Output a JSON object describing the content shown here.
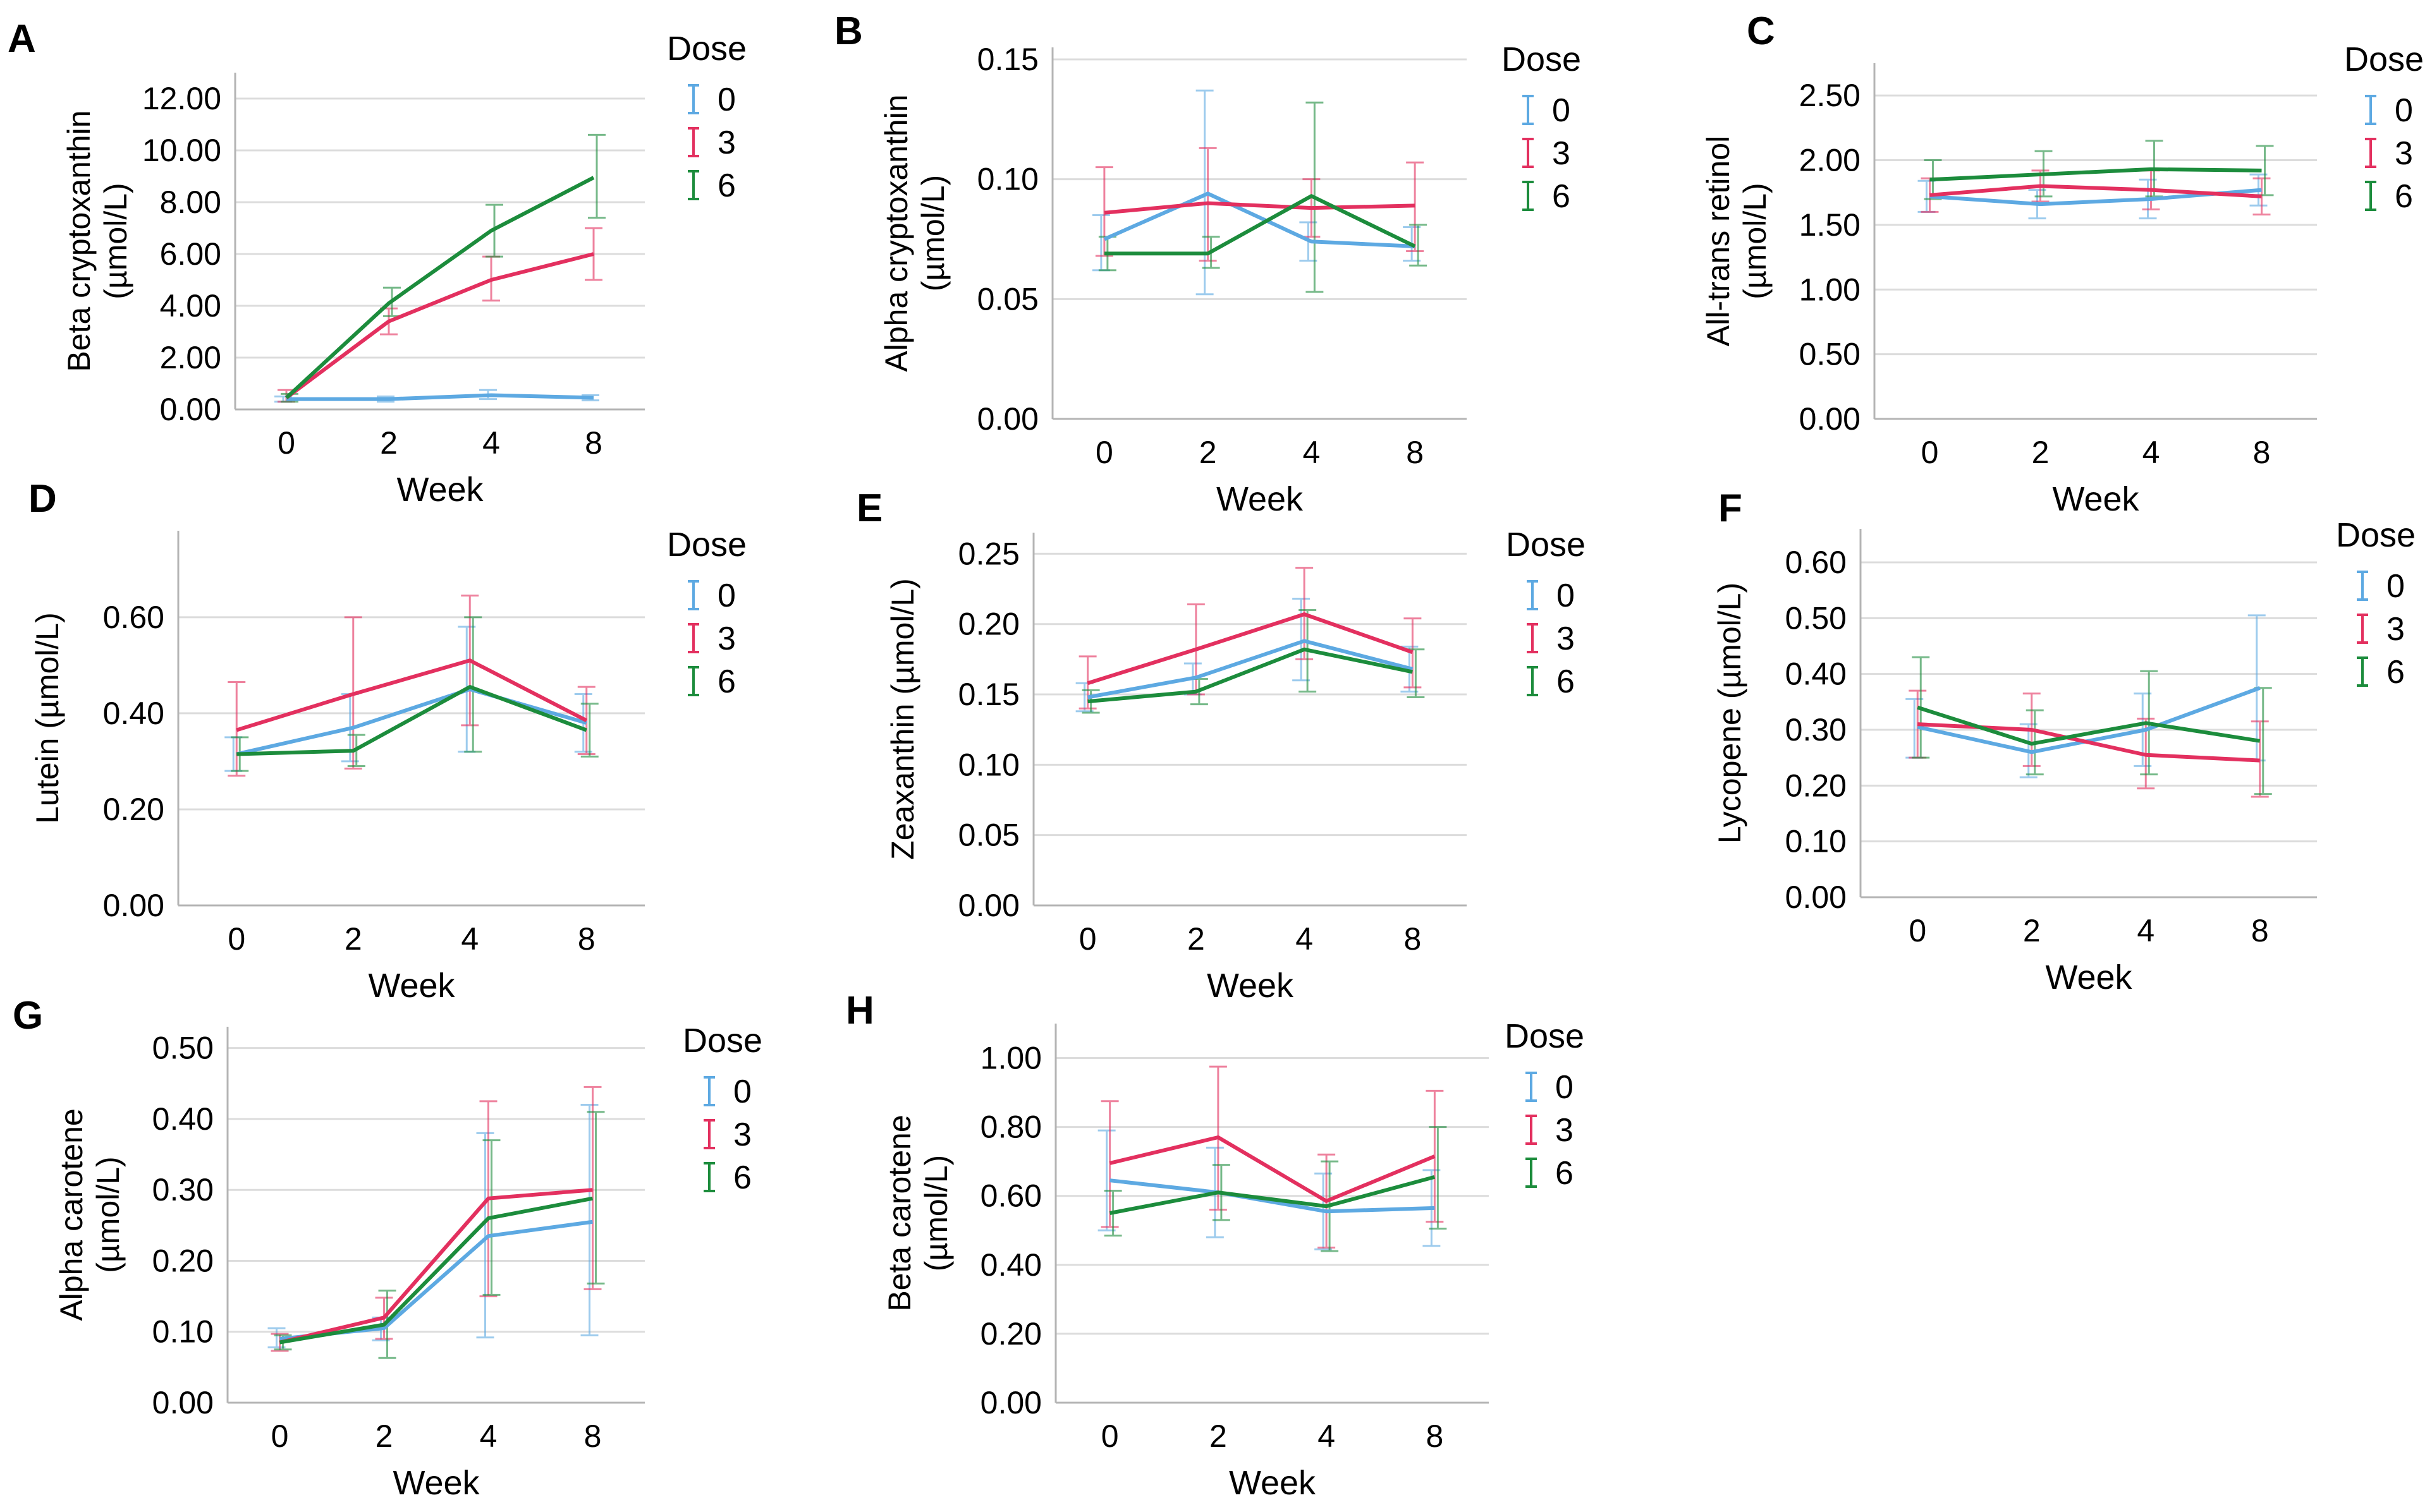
{
  "figure": {
    "series_names": [
      "0",
      "3",
      "6"
    ]
  },
  "colors": {
    "dose0": "#5DA9E2",
    "dose3": "#E3305F",
    "dose6": "#1C8C3C",
    "grid": "#DCDCDC",
    "axis": "#B4B4B4",
    "text": "#000000"
  },
  "chart_data": [
    {
      "id": "A",
      "panel_label": "A",
      "type": "line",
      "title": "",
      "xlabel": "Week",
      "ylabel": [
        "Beta cryptoxanthin",
        "(µmol/L)"
      ],
      "categories": [
        "0",
        "2",
        "4",
        "8"
      ],
      "ylim": [
        0,
        13
      ],
      "yticks": [
        "0.00",
        "2.00",
        "4.00",
        "6.00",
        "8.00",
        "10.00",
        "12.00"
      ],
      "ytick_values": [
        0,
        2,
        4,
        6,
        8,
        10,
        12
      ],
      "grid": true,
      "legend_title": "Dose",
      "legend_position": "right",
      "series": [
        {
          "name": "0",
          "values": [
            0.4,
            0.4,
            0.55,
            0.45
          ],
          "err_low": [
            0.3,
            0.3,
            0.4,
            0.35
          ],
          "err_high": [
            0.5,
            0.5,
            0.75,
            0.55
          ]
        },
        {
          "name": "3",
          "values": [
            0.45,
            3.4,
            5.0,
            6.0
          ],
          "err_low": [
            0.3,
            2.9,
            4.2,
            5.0
          ],
          "err_high": [
            0.75,
            3.9,
            5.9,
            7.0
          ]
        },
        {
          "name": "6",
          "values": [
            0.45,
            4.1,
            6.9,
            8.95
          ],
          "err_low": [
            0.3,
            3.6,
            5.9,
            7.4
          ],
          "err_high": [
            0.6,
            4.7,
            7.9,
            10.6
          ]
        }
      ]
    },
    {
      "id": "B",
      "panel_label": "B",
      "type": "line",
      "title": "",
      "xlabel": "Week",
      "ylabel": [
        "Alpha cryptoxanthin",
        "(µmol/L)"
      ],
      "categories": [
        "0",
        "2",
        "4",
        "8"
      ],
      "ylim": [
        0,
        0.155
      ],
      "yticks": [
        "0.00",
        "0.05",
        "0.10",
        "0.15"
      ],
      "ytick_values": [
        0,
        0.05,
        0.1,
        0.15
      ],
      "grid": true,
      "legend_title": "Dose",
      "legend_position": "right",
      "series": [
        {
          "name": "0",
          "values": [
            0.075,
            0.094,
            0.074,
            0.072
          ],
          "err_low": [
            0.062,
            0.052,
            0.066,
            0.066
          ],
          "err_high": [
            0.085,
            0.137,
            0.082,
            0.08
          ]
        },
        {
          "name": "3",
          "values": [
            0.086,
            0.09,
            0.088,
            0.089
          ],
          "err_low": [
            0.068,
            0.066,
            0.076,
            0.07
          ],
          "err_high": [
            0.105,
            0.113,
            0.1,
            0.107
          ]
        },
        {
          "name": "6",
          "values": [
            0.069,
            0.069,
            0.093,
            0.072
          ],
          "err_low": [
            0.062,
            0.063,
            0.053,
            0.064
          ],
          "err_high": [
            0.076,
            0.076,
            0.132,
            0.081
          ]
        }
      ]
    },
    {
      "id": "C",
      "panel_label": "C",
      "type": "line",
      "title": "",
      "xlabel": "Week",
      "ylabel": [
        "All-trans retinol",
        "(µmol/L)"
      ],
      "categories": [
        "0",
        "2",
        "4",
        "8"
      ],
      "ylim": [
        0,
        2.75
      ],
      "yticks": [
        "0.00",
        "0.50",
        "1.00",
        "1.50",
        "2.00",
        "2.50"
      ],
      "ytick_values": [
        0,
        0.5,
        1.0,
        1.5,
        2.0,
        2.5
      ],
      "grid": true,
      "legend_title": "Dose",
      "legend_position": "right",
      "series": [
        {
          "name": "0",
          "values": [
            1.72,
            1.66,
            1.7,
            1.77
          ],
          "err_low": [
            1.6,
            1.55,
            1.55,
            1.65
          ],
          "err_high": [
            1.84,
            1.77,
            1.85,
            1.89
          ]
        },
        {
          "name": "3",
          "values": [
            1.73,
            1.8,
            1.77,
            1.72
          ],
          "err_low": [
            1.6,
            1.68,
            1.62,
            1.58
          ],
          "err_high": [
            1.86,
            1.92,
            1.92,
            1.86
          ]
        },
        {
          "name": "6",
          "values": [
            1.85,
            1.89,
            1.93,
            1.92
          ],
          "err_low": [
            1.7,
            1.72,
            1.72,
            1.73
          ],
          "err_high": [
            2.0,
            2.07,
            2.15,
            2.11
          ]
        }
      ]
    },
    {
      "id": "D",
      "panel_label": "D",
      "type": "line",
      "title": "",
      "xlabel": "Week",
      "ylabel": [
        "Lutein (µmol/L)"
      ],
      "categories": [
        "0",
        "2",
        "4",
        "8"
      ],
      "ylim": [
        0,
        0.78
      ],
      "yticks": [
        "0.00",
        "0.20",
        "0.40",
        "0.60"
      ],
      "ytick_values": [
        0,
        0.2,
        0.4,
        0.6
      ],
      "grid": true,
      "legend_title": "Dose",
      "legend_position": "right",
      "series": [
        {
          "name": "0",
          "values": [
            0.315,
            0.37,
            0.45,
            0.38
          ],
          "err_low": [
            0.28,
            0.3,
            0.32,
            0.32
          ],
          "err_high": [
            0.35,
            0.44,
            0.58,
            0.44
          ]
        },
        {
          "name": "3",
          "values": [
            0.365,
            0.44,
            0.51,
            0.385
          ],
          "err_low": [
            0.27,
            0.285,
            0.375,
            0.315
          ],
          "err_high": [
            0.465,
            0.6,
            0.645,
            0.455
          ]
        },
        {
          "name": "6",
          "values": [
            0.315,
            0.322,
            0.455,
            0.365
          ],
          "err_low": [
            0.28,
            0.29,
            0.32,
            0.31
          ],
          "err_high": [
            0.35,
            0.355,
            0.6,
            0.42
          ]
        }
      ]
    },
    {
      "id": "E",
      "panel_label": "E",
      "type": "line",
      "title": "",
      "xlabel": "Week",
      "ylabel": [
        "Zeaxanthin (µmol/L)"
      ],
      "categories": [
        "0",
        "2",
        "4",
        "8"
      ],
      "ylim": [
        0,
        0.265
      ],
      "yticks": [
        "0.00",
        "0.05",
        "0.10",
        "0.15",
        "0.20",
        "0.25"
      ],
      "ytick_values": [
        0,
        0.05,
        0.1,
        0.15,
        0.2,
        0.25
      ],
      "grid": true,
      "legend_title": "Dose",
      "legend_position": "right",
      "series": [
        {
          "name": "0",
          "values": [
            0.148,
            0.162,
            0.188,
            0.168
          ],
          "err_low": [
            0.138,
            0.15,
            0.16,
            0.152
          ],
          "err_high": [
            0.158,
            0.172,
            0.218,
            0.184
          ]
        },
        {
          "name": "3",
          "values": [
            0.158,
            0.182,
            0.207,
            0.18
          ],
          "err_low": [
            0.14,
            0.15,
            0.175,
            0.155
          ],
          "err_high": [
            0.177,
            0.214,
            0.24,
            0.204
          ]
        },
        {
          "name": "6",
          "values": [
            0.145,
            0.152,
            0.182,
            0.166
          ],
          "err_low": [
            0.137,
            0.143,
            0.152,
            0.148
          ],
          "err_high": [
            0.153,
            0.161,
            0.21,
            0.182
          ]
        }
      ]
    },
    {
      "id": "F",
      "panel_label": "F",
      "type": "line",
      "title": "",
      "xlabel": "Week",
      "ylabel": [
        "Lycopene (µmol/L)"
      ],
      "categories": [
        "0",
        "2",
        "4",
        "8"
      ],
      "ylim": [
        0,
        0.66
      ],
      "yticks": [
        "0.00",
        "0.10",
        "0.20",
        "0.30",
        "0.40",
        "0.50",
        "0.60"
      ],
      "ytick_values": [
        0,
        0.1,
        0.2,
        0.3,
        0.4,
        0.5,
        0.6
      ],
      "grid": true,
      "legend_title": "Dose",
      "legend_position": "right",
      "series": [
        {
          "name": "0",
          "values": [
            0.305,
            0.26,
            0.3,
            0.375
          ],
          "err_low": [
            0.25,
            0.215,
            0.235,
            0.245
          ],
          "err_high": [
            0.355,
            0.31,
            0.365,
            0.505
          ]
        },
        {
          "name": "3",
          "values": [
            0.31,
            0.3,
            0.255,
            0.245
          ],
          "err_low": [
            0.25,
            0.235,
            0.195,
            0.18
          ],
          "err_high": [
            0.37,
            0.365,
            0.32,
            0.315
          ]
        },
        {
          "name": "6",
          "values": [
            0.34,
            0.275,
            0.312,
            0.28
          ],
          "err_low": [
            0.25,
            0.22,
            0.22,
            0.185
          ],
          "err_high": [
            0.43,
            0.335,
            0.405,
            0.375
          ]
        }
      ]
    },
    {
      "id": "G",
      "panel_label": "G",
      "type": "line",
      "title": "",
      "xlabel": "Week",
      "ylabel": [
        "Alpha carotene",
        "(µmol/L)"
      ],
      "categories": [
        "0",
        "2",
        "4",
        "8"
      ],
      "ylim": [
        0,
        0.53
      ],
      "yticks": [
        "0.00",
        "0.10",
        "0.20",
        "0.30",
        "0.40",
        "0.50"
      ],
      "ytick_values": [
        0,
        0.1,
        0.2,
        0.3,
        0.4,
        0.5
      ],
      "grid": true,
      "legend_title": "Dose",
      "legend_position": "right",
      "series": [
        {
          "name": "0",
          "values": [
            0.09,
            0.105,
            0.235,
            0.255
          ],
          "err_low": [
            0.078,
            0.088,
            0.092,
            0.095
          ],
          "err_high": [
            0.105,
            0.12,
            0.38,
            0.42
          ]
        },
        {
          "name": "3",
          "values": [
            0.085,
            0.12,
            0.288,
            0.3
          ],
          "err_low": [
            0.073,
            0.09,
            0.15,
            0.16
          ],
          "err_high": [
            0.097,
            0.148,
            0.425,
            0.445
          ]
        },
        {
          "name": "6",
          "values": [
            0.085,
            0.11,
            0.26,
            0.288
          ],
          "err_low": [
            0.075,
            0.063,
            0.152,
            0.168
          ],
          "err_high": [
            0.095,
            0.158,
            0.37,
            0.41
          ]
        }
      ]
    },
    {
      "id": "H",
      "panel_label": "H",
      "type": "line",
      "title": "",
      "xlabel": "Week",
      "ylabel": [
        "Beta carotene",
        "(µmol/L)"
      ],
      "categories": [
        "0",
        "2",
        "4",
        "8"
      ],
      "ylim": [
        0,
        1.1
      ],
      "yticks": [
        "0.00",
        "0.20",
        "0.40",
        "0.60",
        "0.80",
        "1.00"
      ],
      "ytick_values": [
        0,
        0.2,
        0.4,
        0.6,
        0.8,
        1.0
      ],
      "grid": true,
      "legend_title": "Dose",
      "legend_position": "right",
      "series": [
        {
          "name": "0",
          "values": [
            0.645,
            0.61,
            0.555,
            0.565
          ],
          "err_low": [
            0.5,
            0.48,
            0.445,
            0.455
          ],
          "err_high": [
            0.79,
            0.74,
            0.665,
            0.675
          ]
        },
        {
          "name": "3",
          "values": [
            0.695,
            0.77,
            0.585,
            0.715
          ],
          "err_low": [
            0.51,
            0.56,
            0.45,
            0.525
          ],
          "err_high": [
            0.875,
            0.975,
            0.72,
            0.905
          ]
        },
        {
          "name": "6",
          "values": [
            0.55,
            0.61,
            0.57,
            0.655
          ],
          "err_low": [
            0.485,
            0.53,
            0.44,
            0.505
          ],
          "err_high": [
            0.615,
            0.69,
            0.7,
            0.8
          ]
        }
      ]
    }
  ]
}
